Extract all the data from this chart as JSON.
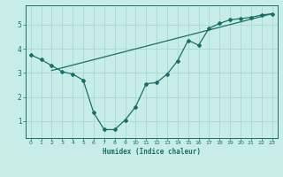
{
  "title": "",
  "xlabel": "Humidex (Indice chaleur)",
  "bg_color": "#c8ece8",
  "grid_color": "#a8d8d4",
  "line_color": "#1a7068",
  "xlim": [
    -0.5,
    23.5
  ],
  "ylim": [
    0.3,
    5.8
  ],
  "xticks": [
    0,
    1,
    2,
    3,
    4,
    5,
    6,
    7,
    8,
    9,
    10,
    11,
    12,
    13,
    14,
    15,
    16,
    17,
    18,
    19,
    20,
    21,
    22,
    23
  ],
  "yticks": [
    1,
    2,
    3,
    4,
    5
  ],
  "line1_x": [
    0,
    1,
    2,
    3,
    4,
    5,
    6,
    7,
    8,
    9,
    10,
    11,
    12,
    13,
    14,
    15,
    16,
    17,
    18,
    19,
    20,
    21,
    22,
    23
  ],
  "line1_y": [
    3.75,
    3.55,
    3.3,
    3.05,
    2.95,
    2.7,
    1.35,
    0.65,
    0.65,
    1.05,
    1.6,
    2.55,
    2.6,
    2.95,
    3.5,
    4.35,
    4.15,
    4.85,
    5.05,
    5.2,
    5.25,
    5.3,
    5.4,
    5.45
  ],
  "line2_x": [
    2,
    23
  ],
  "line2_y": [
    3.1,
    5.45
  ]
}
